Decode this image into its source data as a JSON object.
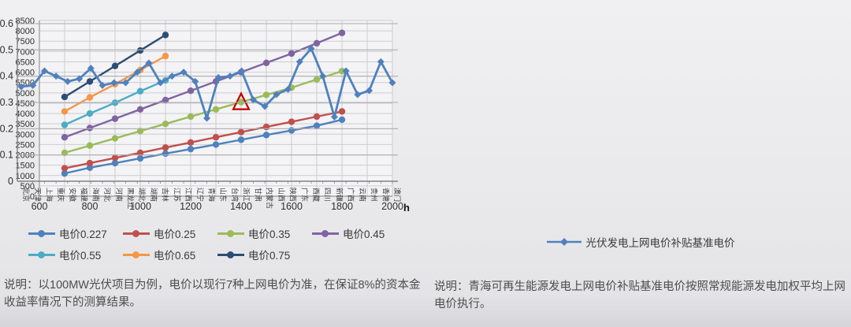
{
  "page": {
    "background": "#e9e9eb"
  },
  "left_panel": {
    "x_unit": "h",
    "note": "说明：以100MW光伏项目为例，电价以现行7种上网电价为准，在保证8%的资本金收益率情况下的测算结果。"
  },
  "right_panel": {
    "legend": "光伏发电上网电价补贴基准电价",
    "note": "说明：青海可再生能源发电上网电价补贴基准电价按照常规能源发电加权平均上网电价执行。"
  },
  "chart_data": [
    {
      "type": "line",
      "title": "",
      "xlabel": "h",
      "ylabel": "",
      "xlim": [
        600,
        2000
      ],
      "ylim": [
        0,
        8500
      ],
      "xticks": [
        600,
        800,
        1000,
        1200,
        1400,
        1600,
        1800,
        2000
      ],
      "yticks": [
        0,
        500,
        1000,
        1500,
        2000,
        2500,
        3000,
        3500,
        4000,
        4500,
        5000,
        5500,
        6000,
        6500,
        7000,
        7500,
        8000,
        8500
      ],
      "grid": "both",
      "legend_position": "bottom",
      "x": [
        700,
        800,
        900,
        1000,
        1100,
        1200,
        1300,
        1400,
        1500,
        1600,
        1700,
        1800
      ],
      "series": [
        {
          "name": "电价0.227",
          "color": "#4f81bd",
          "values": [
            1100,
            1380,
            1600,
            1830,
            2060,
            2280,
            2500,
            2730,
            2960,
            3180,
            3410,
            3700
          ]
        },
        {
          "name": "电价0.25",
          "color": "#c0504d",
          "values": [
            1350,
            1600,
            1850,
            2100,
            2350,
            2600,
            2850,
            3100,
            3350,
            3600,
            3850,
            4100
          ]
        },
        {
          "name": "电价0.35",
          "color": "#9bbb59",
          "values": [
            2100,
            2450,
            2800,
            3150,
            3500,
            3850,
            4200,
            4550,
            4900,
            5250,
            5650,
            6050
          ]
        },
        {
          "name": "电价0.45",
          "color": "#8064a2",
          "values": [
            2850,
            3300,
            3750,
            4200,
            4650,
            5100,
            5550,
            6000,
            6450,
            6900,
            7400,
            7900
          ]
        },
        {
          "name": "电价0.55",
          "color": "#4bacc6",
          "values": [
            3450,
            4000,
            4520,
            5080,
            5600,
            null,
            null,
            null,
            null,
            null,
            null,
            null
          ]
        },
        {
          "name": "电价0.65",
          "color": "#f79646",
          "values": [
            4100,
            4780,
            5420,
            6100,
            6780,
            null,
            null,
            null,
            null,
            null,
            null,
            null
          ]
        },
        {
          "name": "电价0.75",
          "color": "#2c4d75",
          "values": [
            4800,
            5550,
            6300,
            7050,
            7800,
            null,
            null,
            null,
            null,
            null,
            null,
            null
          ]
        }
      ],
      "annotation": {
        "shape": "triangle-outline",
        "x": 1400,
        "value": 4550,
        "color": "#c00000"
      }
    },
    {
      "type": "line",
      "title": "",
      "xlabel": "",
      "ylabel": "",
      "ylim": [
        0,
        0.6
      ],
      "yticks": [
        0,
        0.1,
        0.2,
        0.3,
        0.4,
        0.5,
        0.6
      ],
      "grid": "horizontal",
      "legend_position": "bottom",
      "categories": [
        "北京",
        "天津",
        "上海",
        "重庆",
        "安徽",
        "福建",
        "海南",
        "河北",
        "河南",
        "黑龙江",
        "湖北",
        "湖南",
        "吉林",
        "江苏",
        "江西",
        "辽宁",
        "青海",
        "山东",
        "台湾",
        "浙江",
        "甘肃",
        "内蒙古",
        "山西",
        "陕西",
        "广东",
        "西藏",
        "四川",
        "新疆",
        "广西",
        "云南",
        "贵州",
        "香港",
        "澳门"
      ],
      "series": [
        {
          "name": "光伏发电上网电价补贴基准电价",
          "color": "#4f81bd",
          "marker": "diamond",
          "values": [
            0.36,
            0.365,
            0.42,
            0.4,
            0.38,
            0.39,
            0.43,
            0.365,
            0.375,
            0.375,
            0.415,
            0.45,
            0.375,
            0.4,
            0.415,
            0.38,
            0.24,
            0.395,
            0.4,
            0.42,
            0.31,
            0.285,
            0.33,
            0.35,
            0.455,
            0.505,
            0.4,
            0.245,
            0.42,
            0.33,
            0.345,
            0.455,
            0.375
          ]
        }
      ]
    }
  ]
}
